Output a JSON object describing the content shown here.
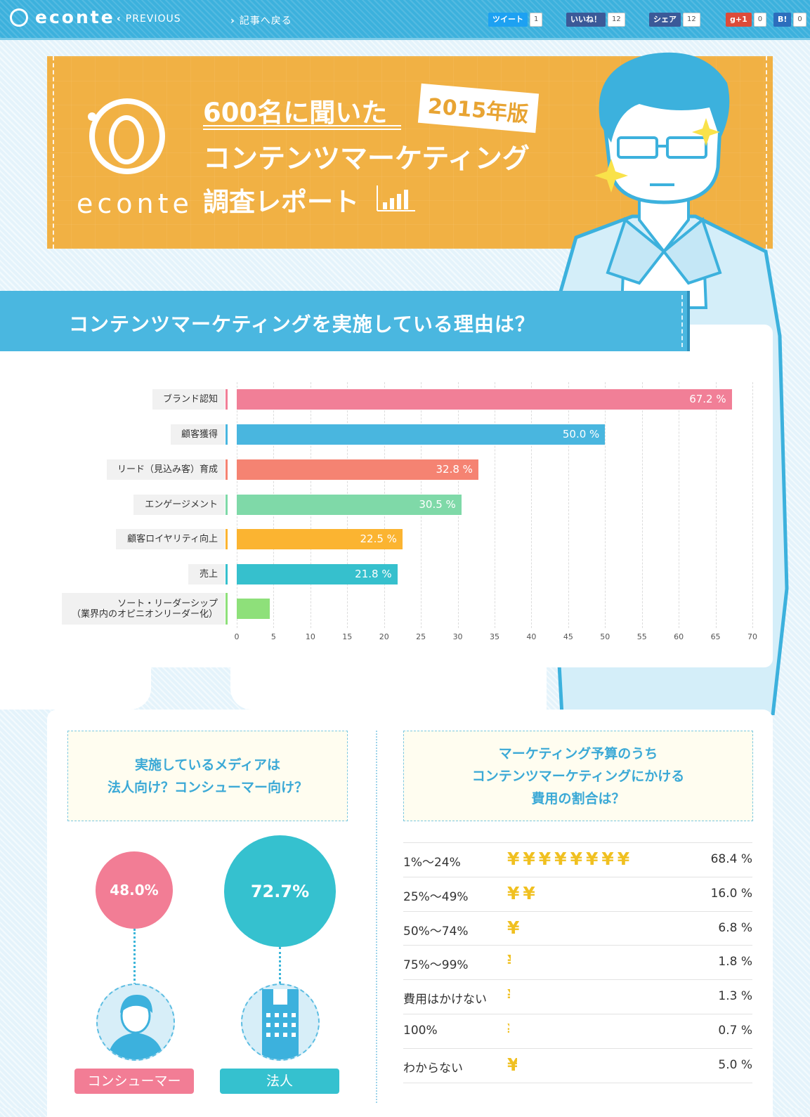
{
  "topbar": {
    "logo": "econte",
    "previous": "PREVIOUS",
    "back": "記事へ戻る",
    "social": [
      {
        "label": "ツイート",
        "count": "1",
        "color": "#1da1f2"
      },
      {
        "label": "いいね！",
        "count": "12",
        "color": "#3b5998"
      },
      {
        "label": "シェア",
        "count": "12",
        "color": "#3b5998"
      },
      {
        "label": "g+1",
        "count": "0",
        "color": "#dd4b39"
      },
      {
        "label": "B!",
        "count": "0",
        "color": "#2c6ebd"
      }
    ]
  },
  "hero": {
    "logo_text": "econte",
    "line1": "600名に聞いた",
    "year_badge": "2015年版",
    "line2": "コンテンツマーケティング",
    "line3": "調査レポート"
  },
  "section1": {
    "title": "コンテンツマーケティングを実施している理由は？"
  },
  "chart_data": {
    "type": "bar",
    "orientation": "horizontal",
    "categories": [
      "ブランド認知",
      "顧客獲得",
      "リード（見込み客）育成",
      "エンゲージメント",
      "顧客ロイヤリティ向上",
      "売上",
      "ソート・リーダーシップ\n（業界内のオピニオンリーダー化）"
    ],
    "values": [
      67.2,
      50.0,
      32.8,
      30.5,
      22.5,
      21.8,
      4.5
    ],
    "value_labels": [
      "67.2 %",
      "50.0 %",
      "32.8 %",
      "30.5 %",
      "22.5 %",
      "21.8 %",
      ""
    ],
    "colors": [
      "#f17f97",
      "#49b6df",
      "#f58372",
      "#7fd9a8",
      "#fbb431",
      "#36c0cd",
      "#8ee07a"
    ],
    "xlim": [
      0,
      70
    ],
    "xticks": [
      "0",
      "5",
      "10",
      "15",
      "20",
      "25",
      "30",
      "35",
      "40",
      "45",
      "50",
      "55",
      "60",
      "65",
      "70"
    ],
    "grid": true
  },
  "media": {
    "question_line1": "実施しているメディアは",
    "question_line2": "法人向け？コンシューマー向け？",
    "consumer_pct": "48.0%",
    "consumer_label": "コンシューマー",
    "consumer_color": "#f27d95",
    "business_pct": "72.7%",
    "business_label": "法人",
    "business_color": "#35c1cf"
  },
  "budget": {
    "question_line1": "マーケティング予算のうち",
    "question_line2": "コンテンツマーケティングにかける",
    "question_line3": "費用の割合は？",
    "icon": "yen-icon",
    "rows": [
      {
        "label": "1%～24%",
        "value": "68.4 %",
        "pct": 68.4
      },
      {
        "label": "25%～49%",
        "value": "16.0 %",
        "pct": 16.0
      },
      {
        "label": "50%～74%",
        "value": "6.8 %",
        "pct": 6.8
      },
      {
        "label": "75%～99%",
        "value": "1.8 %",
        "pct": 1.8
      },
      {
        "label": "費用はかけない",
        "value": "1.3 %",
        "pct": 1.3
      },
      {
        "label": "100%",
        "value": "0.7 %",
        "pct": 0.7
      },
      {
        "label": "わからない",
        "value": "5.0 %",
        "pct": 5.0
      }
    ]
  }
}
